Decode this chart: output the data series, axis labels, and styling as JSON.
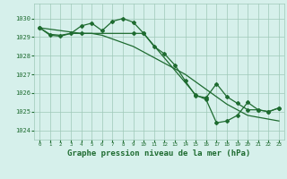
{
  "bg_color": "#d6f0eb",
  "grid_color": "#9ec8b8",
  "line_color": "#1e6b30",
  "xlabel": "Graphe pression niveau de la mer (hPa)",
  "ylim": [
    1023.5,
    1030.8
  ],
  "xlim": [
    -0.5,
    23.5
  ],
  "yticks": [
    1024,
    1025,
    1026,
    1027,
    1028,
    1029,
    1030
  ],
  "xticks": [
    0,
    1,
    2,
    3,
    4,
    5,
    6,
    7,
    8,
    9,
    10,
    11,
    12,
    13,
    14,
    15,
    16,
    17,
    18,
    19,
    20,
    21,
    22,
    23
  ],
  "series1_x": [
    0,
    1,
    2,
    3,
    4,
    5,
    6,
    7,
    8,
    9,
    10,
    11,
    12,
    13,
    14,
    15,
    16,
    17,
    18,
    19,
    20,
    21,
    22,
    23
  ],
  "series1_y": [
    1029.5,
    1029.1,
    1029.05,
    1029.2,
    1029.6,
    1029.75,
    1029.35,
    1029.85,
    1030.0,
    1029.8,
    1029.2,
    1028.5,
    1028.1,
    1027.5,
    1026.65,
    1025.85,
    1025.75,
    1026.5,
    1025.8,
    1025.45,
    1025.1,
    1025.1,
    1025.0,
    1025.2
  ],
  "series2_x": [
    0,
    1,
    2,
    3,
    4,
    5,
    6,
    7,
    8,
    9,
    10,
    11,
    12,
    13,
    14,
    15,
    16,
    17,
    18,
    19,
    20,
    21,
    22,
    23
  ],
  "series2_y": [
    1029.5,
    1029.15,
    1029.1,
    1029.2,
    1029.2,
    1029.2,
    1029.1,
    1028.9,
    1028.7,
    1028.5,
    1028.2,
    1027.9,
    1027.6,
    1027.3,
    1027.0,
    1026.6,
    1026.2,
    1025.8,
    1025.4,
    1025.1,
    1024.8,
    1024.7,
    1024.6,
    1024.5
  ],
  "series3_x": [
    0,
    4,
    9,
    10,
    15,
    16,
    17,
    18,
    19,
    20,
    21,
    22,
    23
  ],
  "series3_y": [
    1029.5,
    1029.2,
    1029.2,
    1029.2,
    1025.9,
    1025.65,
    1024.4,
    1024.5,
    1024.8,
    1025.5,
    1025.1,
    1025.0,
    1025.2
  ]
}
